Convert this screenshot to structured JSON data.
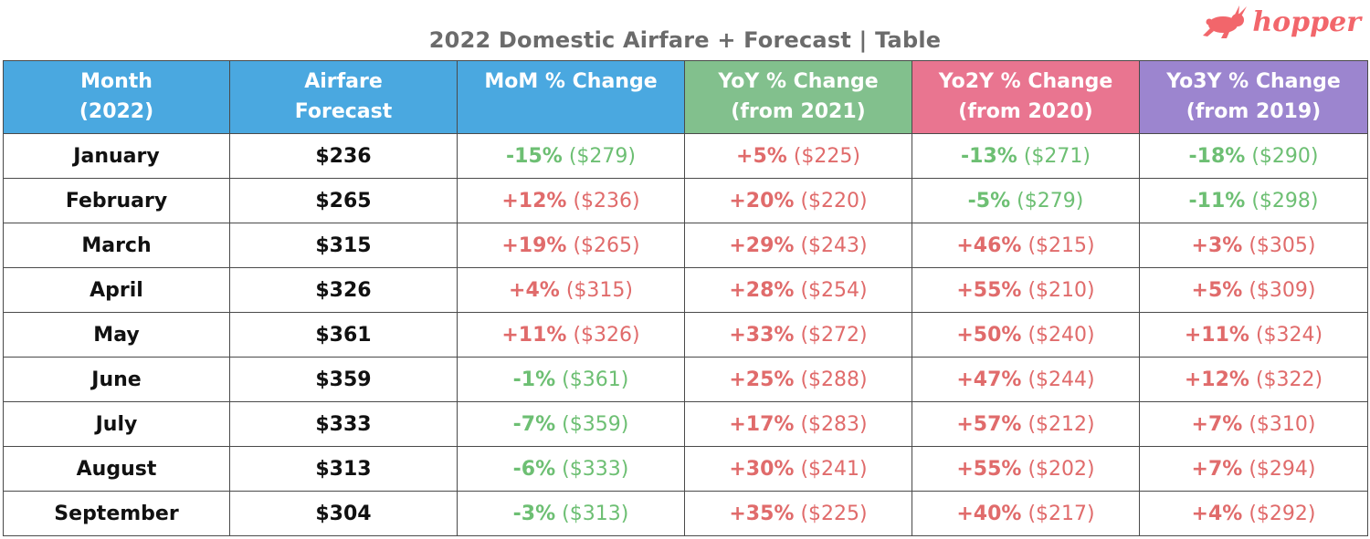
{
  "title": "2022 Domestic Airfare + Forecast | Table",
  "logo": {
    "text": "hopper",
    "icon": "rabbit-logo-icon",
    "color": "#f2666b"
  },
  "colors": {
    "month_header": "#4aa8e0",
    "mom_header": "#4aa8e0",
    "yoy_header": "#82c08d",
    "yo2y_header": "#e97590",
    "yo3y_header": "#9c85cf",
    "increase": "#e06b6b",
    "decrease": "#6dbf73"
  },
  "chart_data": {
    "type": "table",
    "title": "2022 Domestic Airfare + Forecast | Table",
    "headers": [
      [
        "Month",
        "(2022)"
      ],
      [
        "Airfare",
        "Forecast"
      ],
      [
        "MoM % Change",
        ""
      ],
      [
        "YoY % Change",
        "(from 2021)"
      ],
      [
        "Yo2Y % Change",
        "(from 2020)"
      ],
      [
        "Yo3Y % Change",
        "(from 2019)"
      ]
    ],
    "rows": [
      {
        "month": "January",
        "fare": "$236",
        "mom": [
          "-15%",
          "($279)"
        ],
        "yoy": [
          "+5%",
          "($225)"
        ],
        "yo2y": [
          "-13%",
          "($271)"
        ],
        "yo3y": [
          "-18%",
          "($290)"
        ]
      },
      {
        "month": "February",
        "fare": "$265",
        "mom": [
          "+12%",
          "($236)"
        ],
        "yoy": [
          "+20%",
          "($220)"
        ],
        "yo2y": [
          "-5%",
          "($279)"
        ],
        "yo3y": [
          "-11%",
          "($298)"
        ]
      },
      {
        "month": "March",
        "fare": "$315",
        "mom": [
          "+19%",
          "($265)"
        ],
        "yoy": [
          "+29%",
          "($243)"
        ],
        "yo2y": [
          "+46%",
          "($215)"
        ],
        "yo3y": [
          "+3%",
          "($305)"
        ]
      },
      {
        "month": "April",
        "fare": "$326",
        "mom": [
          "+4%",
          "($315)"
        ],
        "yoy": [
          "+28%",
          "($254)"
        ],
        "yo2y": [
          "+55%",
          "($210)"
        ],
        "yo3y": [
          "+5%",
          "($309)"
        ]
      },
      {
        "month": "May",
        "fare": "$361",
        "mom": [
          "+11%",
          "($326)"
        ],
        "yoy": [
          "+33%",
          "($272)"
        ],
        "yo2y": [
          "+50%",
          "($240)"
        ],
        "yo3y": [
          "+11%",
          "($324)"
        ]
      },
      {
        "month": "June",
        "fare": "$359",
        "mom": [
          "-1%",
          "($361)"
        ],
        "yoy": [
          "+25%",
          "($288)"
        ],
        "yo2y": [
          "+47%",
          "($244)"
        ],
        "yo3y": [
          "+12%",
          "($322)"
        ]
      },
      {
        "month": "July",
        "fare": "$333",
        "mom": [
          "-7%",
          "($359)"
        ],
        "yoy": [
          "+17%",
          "($283)"
        ],
        "yo2y": [
          "+57%",
          "($212)"
        ],
        "yo3y": [
          "+7%",
          "($310)"
        ]
      },
      {
        "month": "August",
        "fare": "$313",
        "mom": [
          "-6%",
          "($333)"
        ],
        "yoy": [
          "+30%",
          "($241)"
        ],
        "yo2y": [
          "+55%",
          "($202)"
        ],
        "yo3y": [
          "+7%",
          "($294)"
        ]
      },
      {
        "month": "September",
        "fare": "$304",
        "mom": [
          "-3%",
          "($313)"
        ],
        "yoy": [
          "+35%",
          "($225)"
        ],
        "yo2y": [
          "+40%",
          "($217)"
        ],
        "yo3y": [
          "+4%",
          "($292)"
        ]
      }
    ]
  }
}
